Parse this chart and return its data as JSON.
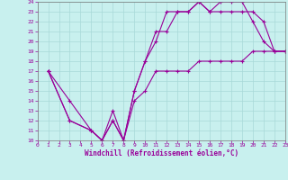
{
  "xlabel": "Windchill (Refroidissement éolien,°C)",
  "bg_color": "#c8f0ee",
  "line_color": "#990099",
  "grid_color": "#a8d8d8",
  "xmin": 0,
  "xmax": 23,
  "ymin": 10,
  "ymax": 24,
  "xticks": [
    0,
    1,
    2,
    3,
    4,
    5,
    6,
    7,
    8,
    9,
    10,
    11,
    12,
    13,
    14,
    15,
    16,
    17,
    18,
    19,
    20,
    21,
    22,
    23
  ],
  "yticks": [
    10,
    11,
    12,
    13,
    14,
    15,
    16,
    17,
    18,
    19,
    20,
    21,
    22,
    23,
    24
  ],
  "line1_x": [
    1,
    3,
    5,
    6,
    7,
    8,
    9,
    10,
    11,
    12,
    13,
    14,
    15,
    16,
    17,
    18,
    19,
    20,
    21,
    22,
    23
  ],
  "line1_y": [
    17,
    14,
    11,
    10,
    12,
    10,
    14,
    15,
    17,
    17,
    17,
    17,
    18,
    18,
    18,
    18,
    18,
    19,
    19,
    19,
    19
  ],
  "line2_x": [
    1,
    3,
    5,
    6,
    7,
    8,
    9,
    10,
    11,
    12,
    13,
    14,
    15,
    16,
    17,
    18,
    19,
    20,
    21,
    22,
    23
  ],
  "line2_y": [
    17,
    12,
    11,
    10,
    12,
    10,
    15,
    18,
    21,
    21,
    23,
    23,
    24,
    23,
    24,
    24,
    24,
    22,
    20,
    19,
    19
  ],
  "line3_x": [
    1,
    3,
    5,
    6,
    7,
    8,
    9,
    10,
    11,
    12,
    13,
    14,
    15,
    16,
    17,
    18,
    19,
    20,
    21,
    22,
    23
  ],
  "line3_y": [
    17,
    12,
    11,
    10,
    13,
    10,
    15,
    18,
    20,
    23,
    23,
    23,
    24,
    23,
    23,
    23,
    23,
    23,
    22,
    19,
    19
  ]
}
